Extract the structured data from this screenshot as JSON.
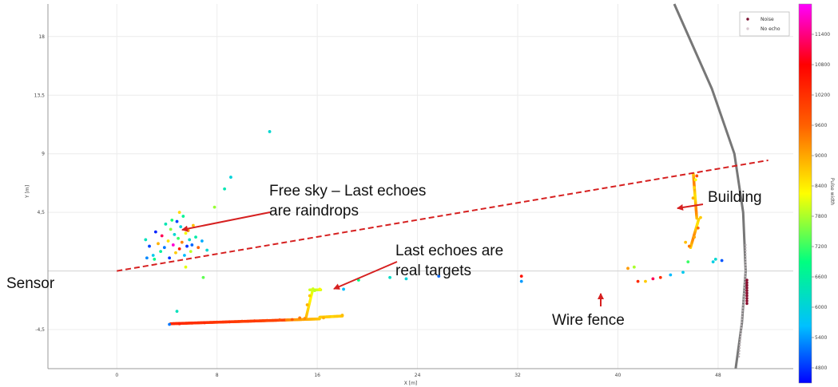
{
  "chart_data": {
    "type": "scatter",
    "xlabel": "X [m]",
    "ylabel": "Y [m]",
    "xlim": [
      -5.5,
      54
    ],
    "ylim": [
      -7.5,
      20.5
    ],
    "x_ticks": [
      0,
      8,
      16,
      24,
      32,
      40,
      48
    ],
    "x_tick_labels": [
      "0",
      "8",
      "16",
      "24",
      "32",
      "40",
      "48"
    ],
    "y_ticks": [
      -4.5,
      0,
      4.5,
      9,
      13.5,
      18
    ],
    "y_tick_labels": [
      "-4,5",
      "",
      "4,5",
      "9",
      "13,5",
      "18"
    ],
    "grid": true,
    "legend": {
      "placement": "top-right",
      "entries": [
        {
          "label": "Noise",
          "color": "#7a1030"
        },
        {
          "label": "No echo",
          "color": "#d8c8d0"
        }
      ]
    },
    "colorbar": {
      "label": "Pulse width",
      "range": [
        4500,
        12000
      ],
      "tick_values": [
        4800,
        5400,
        6000,
        6600,
        7200,
        7800,
        8400,
        9000,
        9600,
        10200,
        10800,
        11400
      ],
      "tick_labels": [
        "4800",
        "5400",
        "6000",
        "6600",
        "7200",
        "7800",
        "8400",
        "9000",
        "9600",
        "10200",
        "10800",
        "11400"
      ]
    },
    "boundary_line": {
      "style": "dashed",
      "color": "#d62020",
      "from": [
        0,
        0
      ],
      "to": [
        52,
        8.5
      ]
    },
    "arc": {
      "color": "#777777",
      "points": [
        [
          44.5,
          20.5
        ],
        [
          47.5,
          14
        ],
        [
          49.3,
          9
        ],
        [
          50,
          4.5
        ],
        [
          50.2,
          0
        ],
        [
          49.9,
          -4
        ],
        [
          49.4,
          -7.5
        ]
      ]
    },
    "series": [
      {
        "group": "raindrops",
        "points": [
          [
            2.3,
            2.4,
            6300
          ],
          [
            2.6,
            1.9,
            4900
          ],
          [
            2.9,
            1.2,
            5800
          ],
          [
            3.1,
            3.0,
            4700
          ],
          [
            3.3,
            2.1,
            8900
          ],
          [
            3.5,
            1.5,
            6600
          ],
          [
            3.6,
            2.7,
            11200
          ],
          [
            3.8,
            1.8,
            5200
          ],
          [
            3.9,
            3.6,
            6400
          ],
          [
            4.1,
            2.3,
            8500
          ],
          [
            4.2,
            1.0,
            4800
          ],
          [
            4.3,
            3.2,
            7600
          ],
          [
            4.5,
            2.0,
            11800
          ],
          [
            4.6,
            2.8,
            6100
          ],
          [
            4.7,
            1.4,
            8700
          ],
          [
            4.8,
            3.8,
            4900
          ],
          [
            4.9,
            2.5,
            7200
          ],
          [
            5.0,
            1.7,
            10500
          ],
          [
            5.1,
            3.4,
            6000
          ],
          [
            5.2,
            2.2,
            9300
          ],
          [
            5.3,
            4.2,
            6700
          ],
          [
            5.4,
            1.2,
            5600
          ],
          [
            5.5,
            2.9,
            8200
          ],
          [
            5.6,
            1.9,
            4800
          ],
          [
            5.7,
            3.1,
            9100
          ],
          [
            5.8,
            2.4,
            6200
          ],
          [
            5.9,
            1.5,
            7900
          ],
          [
            6.0,
            2.0,
            5100
          ],
          [
            6.1,
            3.5,
            8800
          ],
          [
            6.3,
            2.6,
            6500
          ],
          [
            6.5,
            1.8,
            9600
          ],
          [
            6.8,
            2.3,
            5500
          ],
          [
            7.2,
            1.6,
            6100
          ],
          [
            2.4,
            1.0,
            5300
          ],
          [
            3.0,
            0.9,
            6800
          ],
          [
            5.0,
            4.5,
            8600
          ],
          [
            4.4,
            3.9,
            7000
          ],
          [
            7.8,
            4.9,
            7700
          ],
          [
            8.6,
            6.3,
            6400
          ],
          [
            9.1,
            7.2,
            6000
          ],
          [
            12.2,
            10.7,
            6100
          ],
          [
            6.9,
            -0.5,
            7400
          ],
          [
            5.5,
            0.3,
            8100
          ],
          [
            4.8,
            -3.1,
            6300
          ]
        ]
      },
      {
        "group": "real-targets",
        "points": [
          [
            4.2,
            -4.1,
            5200
          ],
          [
            5.0,
            -4.05,
            10400
          ],
          [
            6.0,
            -4.0,
            10200
          ],
          [
            7.0,
            -3.97,
            10300
          ],
          [
            8.0,
            -3.93,
            10100
          ],
          [
            9.0,
            -3.9,
            10200
          ],
          [
            10.0,
            -3.86,
            10000
          ],
          [
            11.0,
            -3.83,
            10100
          ],
          [
            12.0,
            -3.8,
            9900
          ],
          [
            13.0,
            -3.76,
            9800
          ],
          [
            14.0,
            -3.73,
            9700
          ],
          [
            14.6,
            -3.6,
            9400
          ],
          [
            15.0,
            -3.65,
            9200
          ],
          [
            15.2,
            -2.6,
            8900
          ],
          [
            15.4,
            -1.9,
            8700
          ],
          [
            15.8,
            -1.5,
            7900
          ],
          [
            16.2,
            -1.4,
            8300
          ],
          [
            16.5,
            -3.6,
            8900
          ],
          [
            17.2,
            -3.5,
            8600
          ],
          [
            18.0,
            -3.4,
            8800
          ],
          [
            18.1,
            -1.4,
            5600
          ],
          [
            19.3,
            -0.7,
            6900
          ],
          [
            21.8,
            -0.5,
            6200
          ],
          [
            23.1,
            -0.6,
            6000
          ],
          [
            25.7,
            -0.4,
            5100
          ],
          [
            32.3,
            -0.4,
            10600
          ],
          [
            32.3,
            -0.8,
            5400
          ],
          [
            40.8,
            0.2,
            9100
          ],
          [
            41.3,
            0.3,
            7800
          ],
          [
            41.6,
            -0.8,
            10300
          ],
          [
            42.2,
            -0.8,
            8700
          ],
          [
            42.8,
            -0.6,
            11200
          ],
          [
            43.4,
            -0.5,
            10200
          ],
          [
            44.2,
            -0.3,
            5600
          ],
          [
            45.2,
            -0.1,
            5800
          ],
          [
            45.6,
            0.7,
            7200
          ],
          [
            45.7,
            1.9,
            9400
          ],
          [
            46.1,
            2.6,
            9000
          ],
          [
            46.4,
            3.3,
            9500
          ],
          [
            46.6,
            4.1,
            8700
          ],
          [
            45.4,
            2.2,
            8800
          ],
          [
            46.0,
            5.6,
            8900
          ],
          [
            46.1,
            6.4,
            8600
          ],
          [
            46.3,
            7.3,
            9800
          ],
          [
            46.2,
            7.0,
            8200
          ],
          [
            47.6,
            0.7,
            5900
          ],
          [
            47.8,
            0.9,
            6100
          ],
          [
            48.3,
            0.8,
            5000
          ]
        ]
      }
    ],
    "annotations": [
      {
        "text": "Free sky – Last echoes",
        "text2": "are raindrops"
      },
      {
        "text": "Last echoes are",
        "text2": "real targets"
      },
      {
        "text": "Sensor"
      },
      {
        "text": "Wire fence"
      },
      {
        "text": "Building"
      }
    ]
  }
}
